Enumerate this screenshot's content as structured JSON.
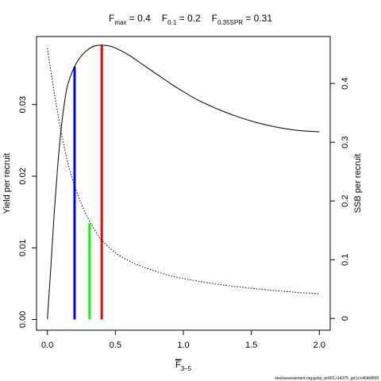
{
  "chart_data": {
    "type": "line",
    "title": "",
    "reference_points": [
      {
        "label_main": "F",
        "label_sub": "max",
        "value_text": " = 0.4"
      },
      {
        "label_main": "F",
        "label_sub": "0.1",
        "value_text": " = 0.2"
      },
      {
        "label_main": "F",
        "label_sub": "0.35SPR",
        "value_text": " = 0.31"
      }
    ],
    "xlabel_main": "F",
    "xlabel_sub": "3–5",
    "ylabel_left": "Yield per recruit",
    "ylabel_right": "SSB per recruit",
    "xlim": [
      -0.08,
      2.08
    ],
    "ylim_left": [
      -0.0015,
      0.0395
    ],
    "ylim_right": [
      -0.02,
      0.48
    ],
    "x_ticks": [
      0.0,
      0.5,
      1.0,
      1.5,
      2.0
    ],
    "x_tick_labels": [
      "0.0",
      "0.5",
      "1.0",
      "1.5",
      "2.0"
    ],
    "y_left_ticks": [
      0.0,
      0.01,
      0.02,
      0.03
    ],
    "y_left_tick_labels": [
      "0.00",
      "0.01",
      "0.02",
      "0.03"
    ],
    "y_right_ticks": [
      0.0,
      0.1,
      0.2,
      0.3,
      0.4
    ],
    "y_right_tick_labels": [
      "0",
      "0.1",
      "0.2",
      "0.3",
      "0.4"
    ],
    "grid": false,
    "series": [
      {
        "name": "",
        "axis": "left",
        "style": "solid",
        "color": "#000000",
        "x": [
          0,
          0.025,
          0.05,
          0.075,
          0.1,
          0.125,
          0.15,
          0.2,
          0.25,
          0.3,
          0.35,
          0.4,
          0.45,
          0.5,
          0.6,
          0.7,
          0.8,
          0.9,
          1.0,
          1.1,
          1.2,
          1.3,
          1.4,
          1.5,
          1.6,
          1.7,
          1.8,
          1.9,
          2.0
        ],
        "y": [
          0.0,
          0.0072,
          0.0148,
          0.0212,
          0.0264,
          0.0302,
          0.0328,
          0.0353,
          0.0368,
          0.0377,
          0.0382,
          0.0383,
          0.0382,
          0.0379,
          0.0369,
          0.0356,
          0.0343,
          0.033,
          0.0318,
          0.0307,
          0.0298,
          0.029,
          0.0283,
          0.0277,
          0.0272,
          0.0268,
          0.0265,
          0.0263,
          0.0262
        ]
      },
      {
        "name": "",
        "axis": "right",
        "style": "dotted",
        "color": "#000000",
        "x": [
          0,
          0.05,
          0.1,
          0.15,
          0.2,
          0.25,
          0.3,
          0.35,
          0.4,
          0.5,
          0.6,
          0.7,
          0.8,
          0.9,
          1.0,
          1.2,
          1.4,
          1.6,
          1.8,
          2.0
        ],
        "y": [
          0.46,
          0.385,
          0.32,
          0.265,
          0.226,
          0.195,
          0.17,
          0.15,
          0.133,
          0.112,
          0.098,
          0.088,
          0.08,
          0.073,
          0.068,
          0.06,
          0.054,
          0.049,
          0.045,
          0.042
        ]
      }
    ],
    "vertical_markers": [
      {
        "x": 0.2,
        "y_top": 0.0353,
        "color": "#0000ff"
      },
      {
        "x": 0.31,
        "y_top": 0.0134,
        "color": "#00ff00"
      },
      {
        "x": 0.4,
        "y_top": 0.0383,
        "color": "#ff0000"
      }
    ]
  },
  "footer": {
    "credit": "stockassessment.org,goby_an001,r14375 ,git:1cc464b806f"
  }
}
